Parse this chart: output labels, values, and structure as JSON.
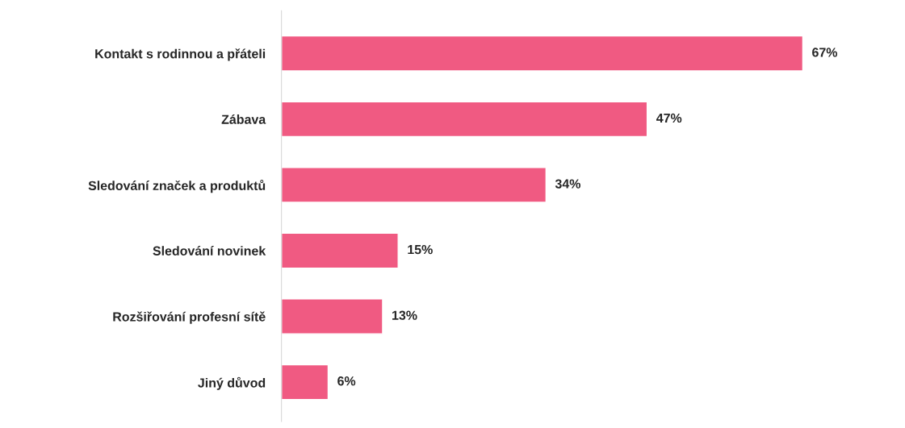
{
  "chart_data": {
    "type": "bar",
    "orientation": "horizontal",
    "categories": [
      "Kontakt s rodinnou a přáteli",
      "Zábava",
      "Sledování značek a produktů",
      "Sledování novinek",
      "Rozšiřování profesní sítě",
      "Jiný důvod"
    ],
    "values": [
      67,
      47,
      34,
      15,
      13,
      6
    ],
    "value_labels": [
      "67%",
      "47%",
      "34%",
      "15%",
      "13%",
      "6%"
    ],
    "color": "#f05a82",
    "grid": false,
    "legend": false,
    "tick_labels": "y"
  }
}
